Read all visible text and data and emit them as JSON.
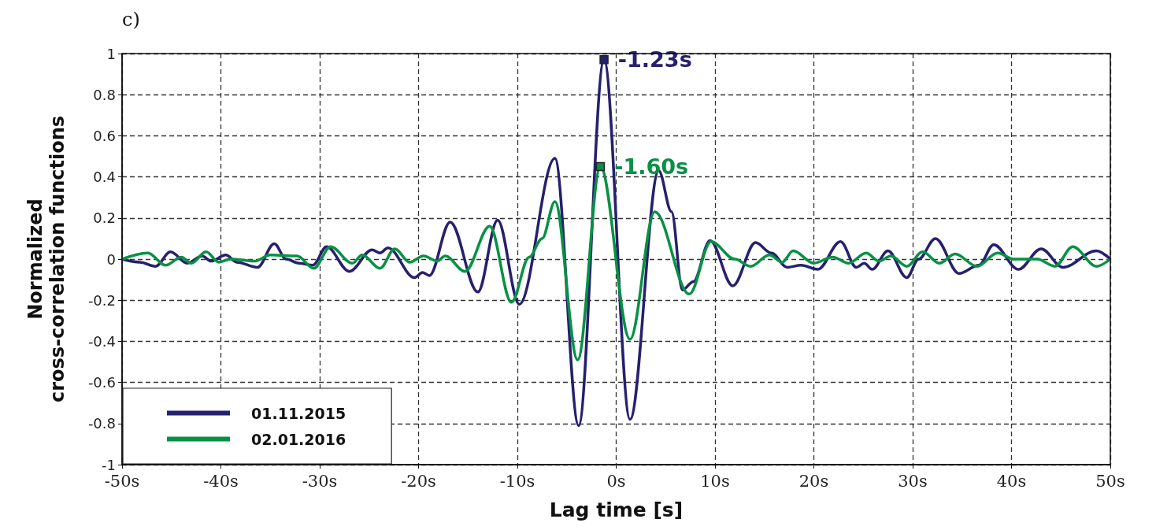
{
  "chart_data": {
    "type": "line",
    "title": "c)",
    "xlabel": "Lag time [s]",
    "ylabel": "Normalized\ncross-correlation functions",
    "xlim": [
      -50,
      50
    ],
    "xticks": [
      {
        "value": -50,
        "label": "-50s"
      },
      {
        "value": -40,
        "label": "-40s"
      },
      {
        "value": -30,
        "label": "-30s"
      },
      {
        "value": -20,
        "label": "-20s"
      },
      {
        "value": -10,
        "label": "-10s"
      },
      {
        "value": 0,
        "label": "0s"
      },
      {
        "value": 10,
        "label": "10s"
      },
      {
        "value": 20,
        "label": "20s"
      },
      {
        "value": 30,
        "label": "30s"
      },
      {
        "value": 40,
        "label": "40s"
      },
      {
        "value": 50,
        "label": "50s"
      }
    ],
    "ylim": [
      -1,
      1
    ],
    "yticks": [
      -1,
      -0.8,
      -0.6,
      -0.4,
      -0.2,
      0,
      0.2,
      0.4,
      0.6,
      0.8,
      1
    ],
    "grid": true,
    "legend": "bottom left",
    "line_style": "solid",
    "marker": "none",
    "series": [
      {
        "name": "01.11.2015",
        "color": "#26206e",
        "x": [
          -50,
          -48.2,
          -46.6,
          -45.1,
          -43.4,
          -41.9,
          -41,
          -39.5,
          -38.4,
          -36.3,
          -34.6,
          -33.4,
          -32.1,
          -30.7,
          -29.3,
          -27,
          -24.7,
          -23.9,
          -23.1,
          -20.4,
          -19.6,
          -18.9,
          -16.8,
          -14,
          -12,
          -9.8,
          -6.2,
          -3.8,
          -1.23,
          1.4,
          4.3,
          5.6,
          6.7,
          7.8,
          9.5,
          11.8,
          14.1,
          15.7,
          17.3,
          18.7,
          20.4,
          22.7,
          24.3,
          25.1,
          25.9,
          27.5,
          29.4,
          30.6,
          32.3,
          34.7,
          36.7,
          38.2,
          40.7,
          43,
          45.2,
          48.6,
          50
        ],
        "values": [
          0,
          -0.015,
          -0.035,
          0.035,
          -0.02,
          0.015,
          -0.01,
          0.02,
          -0.015,
          -0.04,
          0.075,
          0,
          -0.02,
          -0.03,
          0.06,
          -0.06,
          0.045,
          0.03,
          0.055,
          -0.09,
          -0.065,
          -0.08,
          0.18,
          -0.16,
          0.19,
          -0.22,
          0.49,
          -0.81,
          0.97,
          -0.78,
          0.43,
          0.23,
          -0.15,
          -0.11,
          0.09,
          -0.13,
          0.08,
          0.03,
          -0.04,
          -0.03,
          -0.05,
          0.085,
          -0.04,
          -0.02,
          -0.05,
          0.04,
          -0.09,
          0,
          0.1,
          -0.07,
          -0.03,
          0.07,
          -0.05,
          0.05,
          -0.04,
          0.04,
          0
        ]
      },
      {
        "name": "02.01.2016",
        "color": "#079144",
        "x": [
          -50,
          -47.4,
          -45.6,
          -44,
          -43,
          -41.5,
          -40.2,
          -39,
          -36.6,
          -35,
          -32.3,
          -30.6,
          -28.9,
          -26.7,
          -25.7,
          -23.9,
          -22.4,
          -20.9,
          -19.5,
          -18.1,
          -17.3,
          -15.3,
          -12.8,
          -10.6,
          -8.8,
          -7.5,
          -6.2,
          -3.9,
          -1.6,
          1.4,
          3.9,
          7.4,
          9.6,
          12,
          13.6,
          15.5,
          16.8,
          17.9,
          20,
          21.9,
          23.5,
          25.3,
          26.6,
          27.8,
          29.4,
          31,
          32.7,
          34.3,
          36.5,
          38.6,
          40.2,
          42.6,
          44.4,
          46.2,
          48.6,
          50
        ],
        "values": [
          0,
          0.03,
          -0.03,
          0.01,
          -0.02,
          0.035,
          -0.015,
          0,
          -0.01,
          0.02,
          0.015,
          -0.045,
          0.06,
          -0.02,
          0.02,
          -0.045,
          0.05,
          -0.015,
          0.015,
          -0.01,
          0.015,
          -0.06,
          0.16,
          -0.21,
          0.01,
          0.1,
          0.28,
          -0.49,
          0.45,
          -0.39,
          0.23,
          -0.17,
          0.085,
          0,
          -0.035,
          0.02,
          -0.015,
          0.04,
          -0.02,
          0.01,
          -0.02,
          0.03,
          -0.01,
          0.015,
          -0.035,
          0.035,
          -0.02,
          0.025,
          -0.035,
          0.03,
          0,
          0,
          -0.035,
          0.06,
          -0.035,
          0
        ]
      }
    ],
    "annotations": [
      {
        "text": "-1.23s",
        "x": -1.23,
        "y": 0.97
      },
      {
        "text": "-1.60s",
        "x": -1.6,
        "y": 0.45
      }
    ]
  }
}
